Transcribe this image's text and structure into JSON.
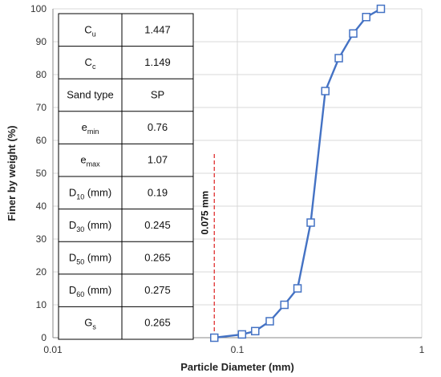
{
  "chart_data": {
    "type": "scatter",
    "title": "",
    "xlabel": "Particle Diameter (mm)",
    "ylabel": "Finer by weight (%)",
    "xscale": "log",
    "xlim": [
      0.01,
      1
    ],
    "ylim": [
      0,
      100
    ],
    "grid": true,
    "x_tick_labels": [
      "0.01",
      "0.1",
      "1"
    ],
    "y_tick_labels": [
      "0",
      "10",
      "20",
      "30",
      "40",
      "50",
      "60",
      "70",
      "80",
      "90",
      "100"
    ],
    "series": [
      {
        "color": "#4472C4",
        "points": [
          {
            "x": 0.075,
            "y": 0
          },
          {
            "x": 0.106,
            "y": 1
          },
          {
            "x": 0.125,
            "y": 2
          },
          {
            "x": 0.15,
            "y": 5
          },
          {
            "x": 0.18,
            "y": 10
          },
          {
            "x": 0.212,
            "y": 15
          },
          {
            "x": 0.25,
            "y": 35
          },
          {
            "x": 0.3,
            "y": 75
          },
          {
            "x": 0.355,
            "y": 85
          },
          {
            "x": 0.425,
            "y": 92.5
          },
          {
            "x": 0.5,
            "y": 97.5
          },
          {
            "x": 0.6,
            "y": 100
          }
        ]
      }
    ],
    "reference_line": {
      "x": 0.075,
      "label": "0.075 mm",
      "color": "#E03030"
    },
    "properties_table": [
      {
        "sym": "C",
        "sub": "u",
        "unit": "",
        "value": "1.447"
      },
      {
        "sym": "C",
        "sub": "c",
        "unit": "",
        "value": "1.149"
      },
      {
        "sym": "Sand type",
        "sub": "",
        "unit": "",
        "value": "SP"
      },
      {
        "sym": "e",
        "sub": "min",
        "unit": "",
        "value": "0.76"
      },
      {
        "sym": "e",
        "sub": "max",
        "unit": "",
        "value": "1.07"
      },
      {
        "sym": "D",
        "sub": "10",
        "unit": " (mm)",
        "value": "0.19"
      },
      {
        "sym": "D",
        "sub": "30",
        "unit": " (mm)",
        "value": "0.245"
      },
      {
        "sym": "D",
        "sub": "50",
        "unit": " (mm)",
        "value": "0.265"
      },
      {
        "sym": "D",
        "sub": "60",
        "unit": " (mm)",
        "value": "0.275"
      },
      {
        "sym": "G",
        "sub": "s",
        "unit": "",
        "value": "0.265"
      }
    ]
  }
}
